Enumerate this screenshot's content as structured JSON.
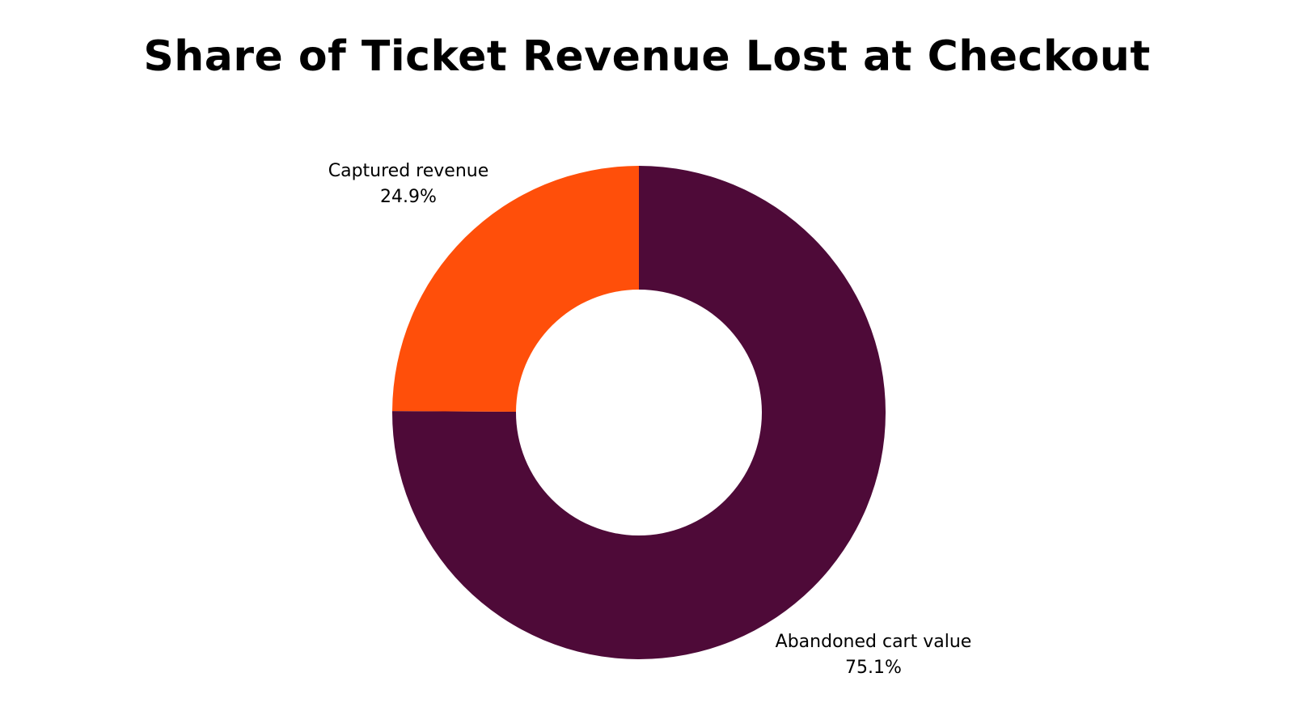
{
  "chart_data": {
    "type": "pie",
    "title": "Share of Ticket Revenue Lost at Checkout",
    "donut": true,
    "slices": [
      {
        "label": "Abandoned cart value",
        "value": 75.1,
        "value_label": "75.1%",
        "color": "#4E0A38"
      },
      {
        "label": "Captured revenue",
        "value": 24.9,
        "value_label": "24.9%",
        "color": "#FF4F0A"
      }
    ]
  }
}
